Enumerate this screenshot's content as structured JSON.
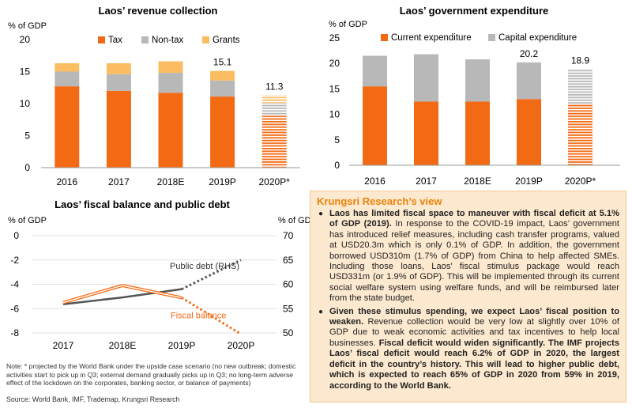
{
  "colors": {
    "tax": "#f26b14",
    "non_tax": "#b8b8b8",
    "grants": "#fbbd62",
    "current": "#f26b14",
    "capital": "#b8b8b8",
    "fiscal_balance": "#f26b14",
    "public_debt": "#555555",
    "box_title": "#e8830b"
  },
  "chart_data": [
    {
      "id": "revenue",
      "type": "bar",
      "stacked": true,
      "title": "Laos’ revenue collection",
      "ylabel": "% of GDP",
      "ylim": [
        0,
        20
      ],
      "yticks": [
        0,
        5,
        10,
        15,
        20
      ],
      "categories": [
        "2016",
        "2017",
        "2018E",
        "2019P",
        "2020P*"
      ],
      "projected_category": "2020P*",
      "series": [
        {
          "name": "Tax",
          "values": [
            12.7,
            12.0,
            11.7,
            11.1,
            8.1
          ]
        },
        {
          "name": "Non-tax",
          "values": [
            2.3,
            2.6,
            3.1,
            2.5,
            2.0
          ]
        },
        {
          "name": "Grants",
          "values": [
            1.3,
            1.7,
            1.8,
            1.5,
            1.2
          ]
        }
      ],
      "data_labels": [
        {
          "category": "2019P",
          "text": "15.1"
        },
        {
          "category": "2020P*",
          "text": "11.3"
        }
      ],
      "legend_position": "top-right"
    },
    {
      "id": "expenditure",
      "type": "bar",
      "stacked": true,
      "title": "Laos’ government expenditure",
      "ylabel": "% of GDP",
      "ylim": [
        0,
        25
      ],
      "yticks": [
        0,
        5,
        10,
        15,
        20,
        25
      ],
      "categories": [
        "2016",
        "2017",
        "2018E",
        "2019P",
        "2020P*"
      ],
      "projected_category": "2020P*",
      "series": [
        {
          "name": "Current expenditure",
          "values": [
            15.5,
            12.5,
            12.5,
            13.0,
            12.0
          ]
        },
        {
          "name": "Capital expenditure",
          "values": [
            6.0,
            9.3,
            8.3,
            7.2,
            6.9
          ]
        }
      ],
      "data_labels": [
        {
          "category": "2019P",
          "text": "20.2"
        },
        {
          "category": "2020P*",
          "text": "18.9"
        }
      ],
      "legend_position": "top"
    },
    {
      "id": "fiscal",
      "type": "line",
      "title": "Laos’ fiscal balance and public debt",
      "ylabel": "% of GDP",
      "y2label": "% of GDP",
      "ylim": [
        -8,
        0
      ],
      "yticks": [
        0,
        -2,
        -4,
        -6,
        -8
      ],
      "y2lim": [
        50,
        70
      ],
      "y2ticks": [
        70,
        65,
        60,
        55,
        50
      ],
      "categories": [
        "2017",
        "2018E",
        "2019P",
        "2020P"
      ],
      "series": [
        {
          "name": "Fiscal balance",
          "axis": "left",
          "values": [
            -5.5,
            -4.1,
            -5.1,
            -8.1
          ],
          "projected_from_index": 2
        },
        {
          "name": "Public debt (RHS)",
          "axis": "right",
          "values": [
            55.9,
            57.3,
            59.0,
            65.0
          ],
          "projected_from_index": 2
        }
      ]
    }
  ],
  "view": {
    "title": "Krungsri Research’s view",
    "bullet_glyph": "●",
    "p1_bold": "Laos has limited fiscal space to maneuver with fiscal deficit at 5.1% of GDP (2019).",
    "p1_text": " In response to the COVID-19 impact, Laos’ government has introduced relief measures, including cash transfer programs, valued at USD20.3m which is only 0.1% of GDP. In addition, the government borrowed USD310m (1.7% of GDP) from China to help affected SMEs. Including those loans, Laos’ fiscal stimulus package would reach USD331m (or 1.9% of GDP). This will be implemented through its current social welfare system using welfare funds, and will be reimbursed later from the state budget.",
    "p2_bold1": "Given these stimulus spending, we expect Laos’ fiscal position to weaken.",
    "p2_text": " Revenue collection would be very low at slightly over 10% of GDP due to weak economic activities and tax incentives to help local businesses.",
    "p2_bold2": " Fiscal deficit would widen significantly. The IMF projects Laos’ fiscal deficit would reach 6.2% of GDP in 2020, the largest deficit in the country’s history. This will lead to higher public debt, which is expected to reach 65% of GDP in 2020 from 59% in 2019, according to the World Bank."
  },
  "note": "Note: * projected by the World Bank under the upside case scenario (no new outbreak; domestic activities start to pick up in Q3; external demand gradually picks up in Q3; no long-term adverse effect of the lockdown on the corporates, banking sector, or balance of payments)",
  "source": "Source: World Bank, IMF, Trademap, Krungsri Research"
}
